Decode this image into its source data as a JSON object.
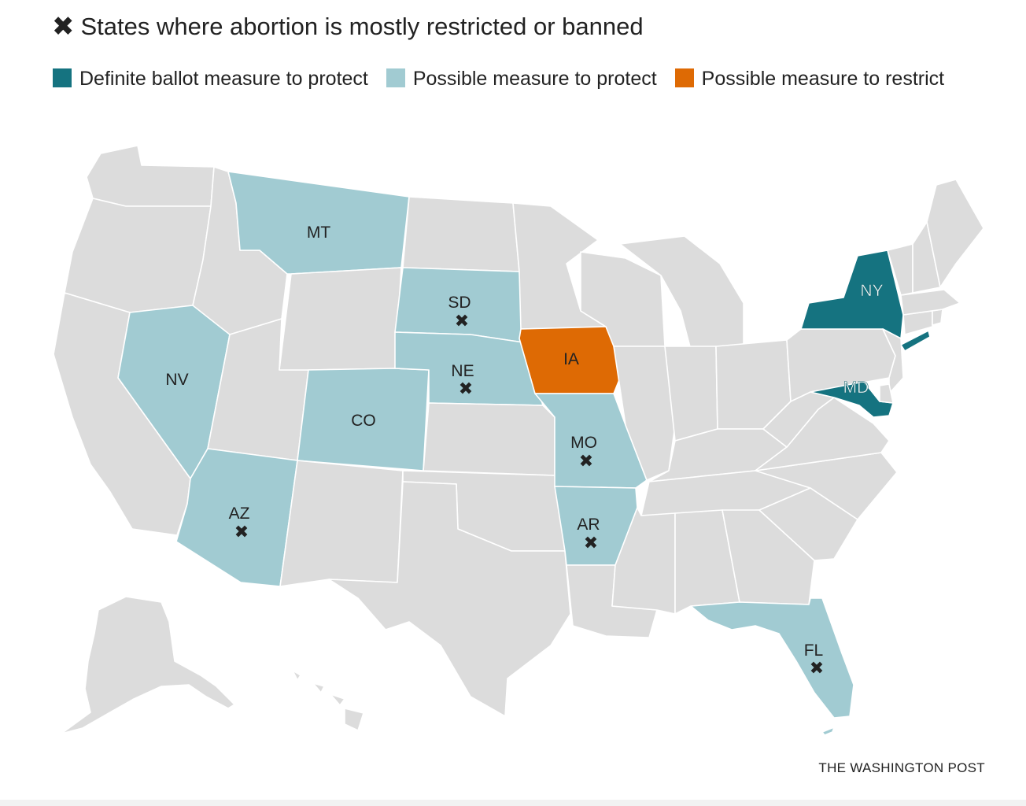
{
  "header": {
    "title_marker": "✖",
    "title": "States where abortion is mostly restricted or banned"
  },
  "legend": [
    {
      "label": "Definite ballot measure to protect",
      "color": "#157380"
    },
    {
      "label": "Possible measure to protect",
      "color": "#a1cbd2"
    },
    {
      "label": "Possible measure to restrict",
      "color": "#de6a04"
    }
  ],
  "map": {
    "default_color": "#dcdcdc",
    "restricted_marker": "✖",
    "states": [
      {
        "abbr": "MT",
        "category": "possible_protect",
        "restricted": false
      },
      {
        "abbr": "SD",
        "category": "possible_protect",
        "restricted": true
      },
      {
        "abbr": "NE",
        "category": "possible_protect",
        "restricted": true
      },
      {
        "abbr": "NV",
        "category": "possible_protect",
        "restricted": false
      },
      {
        "abbr": "CO",
        "category": "possible_protect",
        "restricted": false
      },
      {
        "abbr": "AZ",
        "category": "possible_protect",
        "restricted": true
      },
      {
        "abbr": "MO",
        "category": "possible_protect",
        "restricted": true
      },
      {
        "abbr": "AR",
        "category": "possible_protect",
        "restricted": true
      },
      {
        "abbr": "FL",
        "category": "possible_protect",
        "restricted": true
      },
      {
        "abbr": "IA",
        "category": "possible_restrict",
        "restricted": false
      },
      {
        "abbr": "NY",
        "category": "definite_protect",
        "restricted": false
      },
      {
        "abbr": "MD",
        "category": "definite_protect",
        "restricted": false
      }
    ]
  },
  "footer": {
    "credit": "THE WASHINGTON POST"
  }
}
